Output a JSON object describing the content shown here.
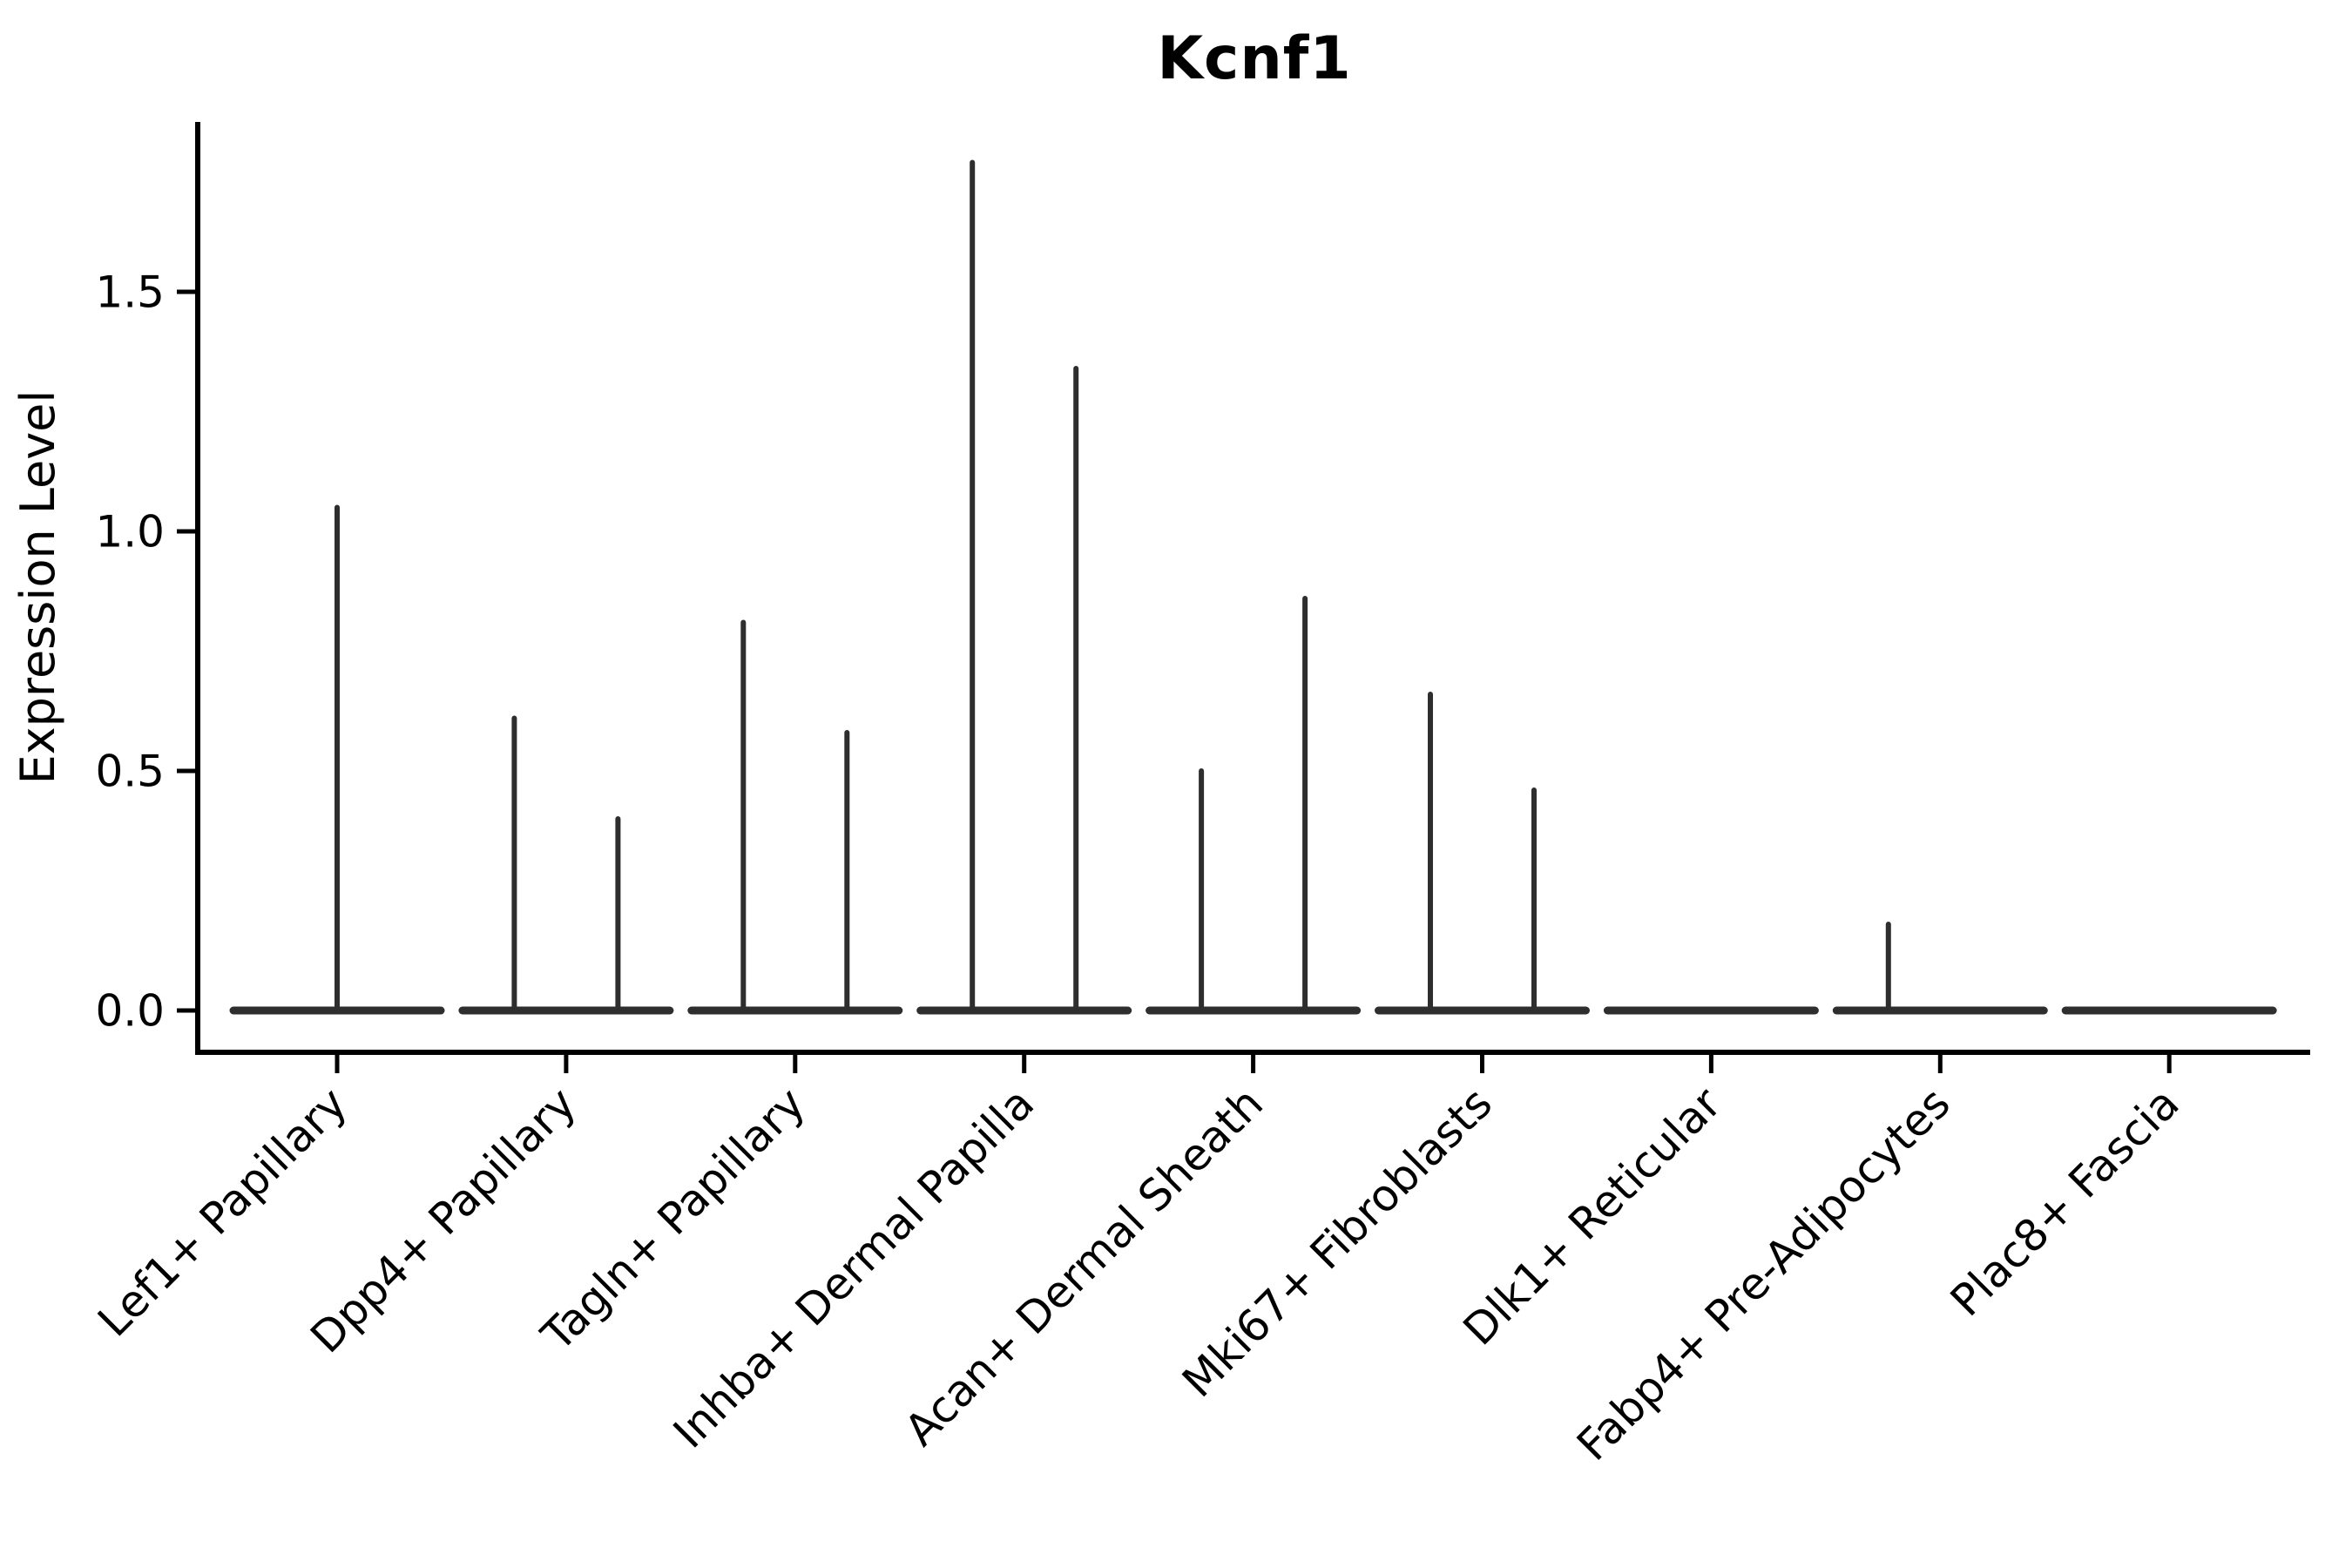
{
  "title": "Kcnf1",
  "chart_data": {
    "type": "violin",
    "title": "Kcnf1",
    "ylabel": "Expression Level",
    "xlabel": "",
    "ylim": [
      -0.09,
      1.86
    ],
    "yticks": [
      0.0,
      0.5,
      1.0,
      1.5
    ],
    "ytick_labels": [
      "0.0",
      "0.5",
      "1.0",
      "1.5"
    ],
    "grid": false,
    "legend": "none",
    "orientation": "vertical",
    "description": "Violin plot of Kcnf1 expression; violins are collapsed to a flat band at 0 with thin spikes up to the maximum expression value. Most categories contain two side-by-side violins.",
    "categories": [
      "Lef1+ Papillary",
      "Dpp4+ Papillary",
      "Tagln+ Papillary",
      "Inhba+ Dermal Papilla",
      "Acan+ Dermal Sheath",
      "Mki67+ Fibroblasts",
      "Dlk1+ Reticular",
      "Fabp4+ Pre-Adipocytes",
      "Plac8+ Fascia"
    ],
    "groups": [
      {
        "category": "Lef1+ Papillary",
        "violins": [
          {
            "position": "center",
            "max": 1.05
          }
        ]
      },
      {
        "category": "Dpp4+ Papillary",
        "violins": [
          {
            "position": "left",
            "max": 0.61
          },
          {
            "position": "right",
            "max": 0.4
          }
        ]
      },
      {
        "category": "Tagln+ Papillary",
        "violins": [
          {
            "position": "left",
            "max": 0.81
          },
          {
            "position": "right",
            "max": 0.58
          }
        ]
      },
      {
        "category": "Inhba+ Dermal Papilla",
        "violins": [
          {
            "position": "left",
            "max": 1.77
          },
          {
            "position": "right",
            "max": 1.34
          }
        ]
      },
      {
        "category": "Acan+ Dermal Sheath",
        "violins": [
          {
            "position": "left",
            "max": 0.5
          },
          {
            "position": "right",
            "max": 0.86
          }
        ]
      },
      {
        "category": "Mki67+ Fibroblasts",
        "violins": [
          {
            "position": "left",
            "max": 0.66
          },
          {
            "position": "right",
            "max": 0.46
          }
        ]
      },
      {
        "category": "Dlk1+ Reticular",
        "violins": [
          {
            "position": "left",
            "max": 0.0
          },
          {
            "position": "right",
            "max": 0.0
          }
        ]
      },
      {
        "category": "Fabp4+ Pre-Adipocytes",
        "violins": [
          {
            "position": "left",
            "max": 0.18
          },
          {
            "position": "right",
            "max": 0.0
          }
        ]
      },
      {
        "category": "Plac8+ Fascia",
        "violins": [
          {
            "position": "left",
            "max": 0.0
          },
          {
            "position": "right",
            "max": 0.0
          }
        ]
      }
    ],
    "colors": {
      "ink": "#000000",
      "violin": "#2e2e2e",
      "background": "#ffffff"
    }
  }
}
